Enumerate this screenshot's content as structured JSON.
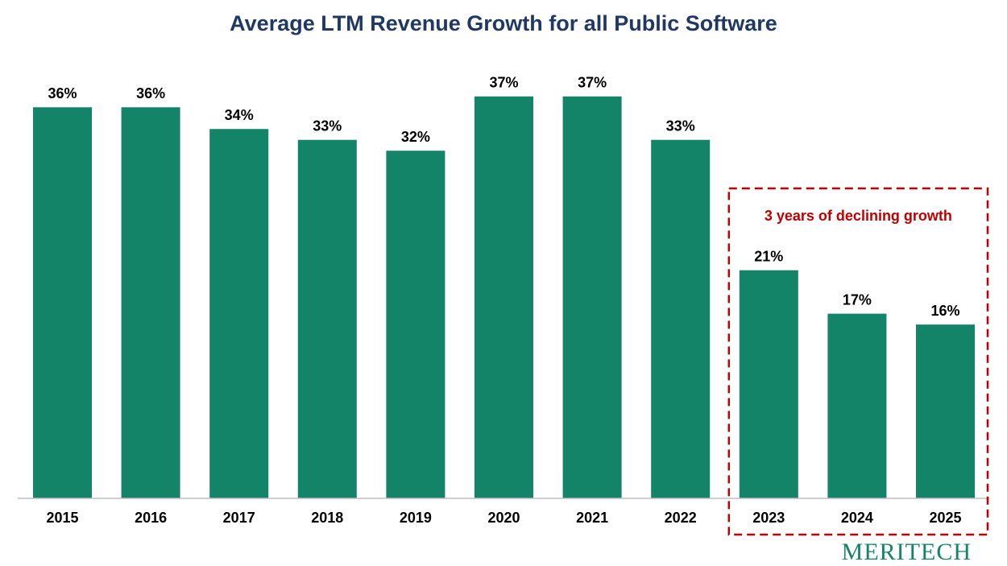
{
  "chart_data": {
    "type": "bar",
    "title": "Average LTM Revenue Growth for all Public Software",
    "categories": [
      "2015",
      "2016",
      "2017",
      "2018",
      "2019",
      "2020",
      "2021",
      "2022",
      "2023",
      "2024",
      "2025"
    ],
    "values": [
      36,
      36,
      34,
      33,
      32,
      37,
      37,
      33,
      21,
      17,
      16
    ],
    "data_labels": [
      "36%",
      "36%",
      "34%",
      "33%",
      "32%",
      "37%",
      "37%",
      "33%",
      "21%",
      "17%",
      "16%"
    ],
    "xlabel": "",
    "ylabel": "",
    "ylim": [
      0,
      37.5
    ],
    "grid": false,
    "legend": "none",
    "bar_color": "#138468",
    "annotation": {
      "text": "3 years of declining  growth",
      "color": "#c00000",
      "covers_categories": [
        "2023",
        "2024",
        "2025"
      ]
    }
  },
  "logo_text": "MERITECH",
  "colors": {
    "title": "#1f3864",
    "bar": "#138468",
    "annotation": "#c00000",
    "logo": "#138468"
  }
}
